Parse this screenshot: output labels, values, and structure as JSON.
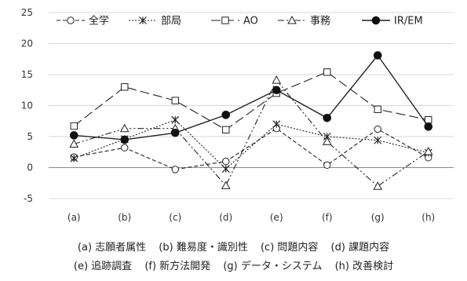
{
  "chart_data": {
    "type": "line",
    "categories": [
      "(a)",
      "(b)",
      "(c)",
      "(d)",
      "(e)",
      "(f)",
      "(g)",
      "(h)"
    ],
    "ylim": [
      -5,
      25
    ],
    "yticks": [
      -5,
      0,
      5,
      10,
      15,
      20,
      25
    ],
    "grid": true,
    "legend_position": "top",
    "series": [
      {
        "name": "全学",
        "marker": "circle-open",
        "dash": "dashed",
        "values": [
          1.7,
          3.2,
          -0.3,
          1.0,
          6.3,
          0.4,
          6.2,
          1.6
        ]
      },
      {
        "name": "部局",
        "marker": "asterisk",
        "dash": "dotted-dash",
        "values": [
          1.5,
          4.6,
          7.7,
          -0.2,
          7.0,
          5.0,
          4.4,
          2.4
        ]
      },
      {
        "name": "AO",
        "marker": "square-open",
        "dash": "long-dash",
        "values": [
          6.7,
          13.0,
          10.8,
          6.1,
          12.0,
          15.4,
          9.4,
          7.7
        ]
      },
      {
        "name": "事務",
        "marker": "triangle-open",
        "dash": "dash-dot-dot",
        "values": [
          3.8,
          6.3,
          6.3,
          -2.9,
          14.1,
          4.2,
          -3.0,
          2.6
        ]
      },
      {
        "name": "IR/EM",
        "marker": "circle-filled",
        "dash": "solid",
        "values": [
          5.2,
          4.5,
          5.6,
          8.5,
          12.5,
          8.0,
          18.1,
          6.6
        ]
      }
    ]
  },
  "notes": {
    "line1": [
      "(a) 志願者属性",
      "(b) 難易度・識別性",
      "(c) 問題内容",
      "(d) 課題内容"
    ],
    "line2": [
      "(e) 追跡調査",
      "(f) 新方法開発",
      "(g) データ・システム",
      "(h) 改善検討"
    ]
  }
}
